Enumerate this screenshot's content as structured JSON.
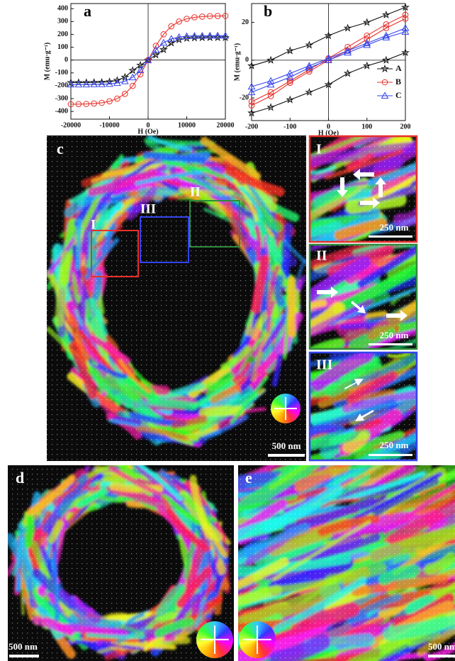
{
  "chart_data": [
    {
      "type": "line",
      "panel_label": "a",
      "x_label": "H (Oe)",
      "y_label": "M (emu·g⁻¹)",
      "x": [
        -20000,
        -18000,
        -16000,
        -14000,
        -12000,
        -10000,
        -8000,
        -6000,
        -4000,
        -2000,
        0,
        2000,
        4000,
        6000,
        8000,
        10000,
        12000,
        14000,
        16000,
        18000,
        20000
      ],
      "xlim": [
        -20000,
        20000
      ],
      "xticks": [
        -20000,
        -10000,
        0,
        10000,
        20000
      ],
      "ylim": [
        -460,
        440
      ],
      "yticks": [
        -400,
        -300,
        -200,
        -100,
        0,
        100,
        200,
        300,
        400
      ],
      "series": [
        {
          "color": "#111111",
          "marker": "star",
          "values": [
            -175,
            -175,
            -175,
            -174,
            -173,
            -169,
            -158,
            -133,
            -81,
            -40,
            0,
            40,
            81,
            133,
            158,
            169,
            173,
            174,
            175,
            175,
            175
          ]
        },
        {
          "color": "#e8302a",
          "marker": "circle",
          "values": [
            -344,
            -343,
            -342,
            -338,
            -333,
            -321,
            -300,
            -263,
            -201,
            -111,
            0,
            111,
            201,
            263,
            300,
            321,
            333,
            338,
            342,
            343,
            344
          ]
        },
        {
          "color": "#3344ee",
          "marker": "triangle",
          "values": [
            -190,
            -190,
            -190,
            -189,
            -188,
            -186,
            -179,
            -165,
            -135,
            -79,
            0,
            79,
            135,
            165,
            179,
            186,
            188,
            189,
            190,
            190,
            190
          ]
        }
      ]
    },
    {
      "type": "hysteresis",
      "panel_label": "b",
      "x_label": "H (Oe)",
      "y_label": "M (emu·g⁻¹)",
      "x": [
        -200,
        -150,
        -100,
        -50,
        0,
        50,
        100,
        150,
        200
      ],
      "xlim": [
        -200,
        200
      ],
      "xticks": [
        -200,
        -100,
        0,
        100,
        200
      ],
      "ylim": [
        -32,
        30
      ],
      "yticks": [
        -20,
        0,
        20
      ],
      "series": [
        {
          "name": "A",
          "color": "#111111",
          "marker": "star",
          "values_rising": [
            -28,
            -25,
            -21,
            -17,
            -13,
            -7,
            -3,
            0,
            4
          ],
          "values_falling": [
            -3,
            0,
            5,
            8,
            13,
            17,
            20,
            24,
            28
          ]
        },
        {
          "name": "B",
          "color": "#e8302a",
          "marker": "circle",
          "values_rising": [
            -24,
            -19,
            -12,
            -6,
            0,
            5,
            11,
            17,
            22
          ],
          "values_falling": [
            -22,
            -17,
            -11,
            -5,
            1,
            7,
            13,
            19,
            24
          ]
        },
        {
          "name": "C",
          "color": "#3344ee",
          "marker": "triangle",
          "values_rising": [
            -17,
            -13,
            -9,
            -4,
            0,
            4,
            8,
            12,
            15
          ],
          "values_falling": [
            -14,
            -11,
            -7,
            -3,
            1,
            5,
            9,
            13,
            17
          ]
        }
      ]
    }
  ],
  "panels": {
    "c": {
      "label": "c",
      "regions": [
        "I",
        "II",
        "III"
      ],
      "scale_bar": "500 nm",
      "insets": [
        {
          "label": "I",
          "scale_bar": "250 nm"
        },
        {
          "label": "II",
          "scale_bar": "250 nm"
        },
        {
          "label": "III",
          "scale_bar": "250 nm"
        }
      ]
    },
    "d": {
      "label": "d",
      "scale_bar": "500 nm"
    },
    "e": {
      "label": "e",
      "scale_bar": "500 nm"
    }
  }
}
